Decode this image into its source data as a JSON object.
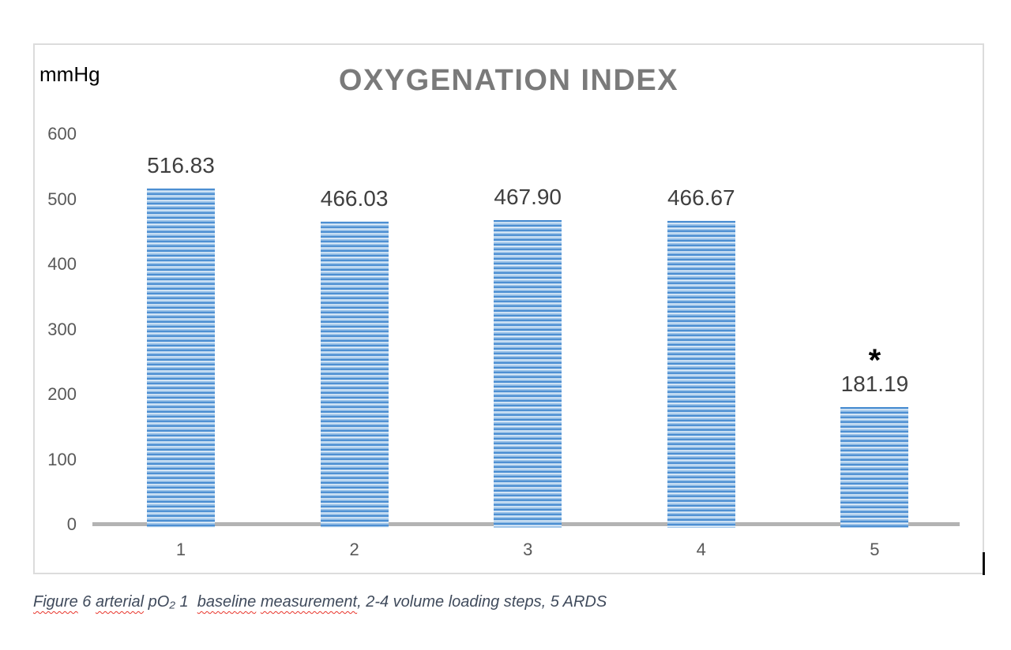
{
  "chart": {
    "title": "OXYGENATION INDEX",
    "unit_label": "mmHg"
  },
  "chart_data": {
    "type": "bar",
    "title": "OXYGENATION INDEX",
    "xlabel": "",
    "ylabel": "mmHg",
    "categories": [
      "1",
      "2",
      "3",
      "4",
      "5"
    ],
    "values": [
      516.83,
      466.03,
      467.9,
      466.67,
      181.19
    ],
    "data_labels": [
      "516.83",
      "466.03",
      "467.90",
      "466.67",
      "181.19"
    ],
    "yticks": [
      0,
      100,
      200,
      300,
      400,
      500,
      600
    ],
    "ylim": [
      0,
      600
    ],
    "grid": false,
    "legend": "none",
    "bar_color": "#5b9bd5",
    "bar_pattern": "horizontal-stripes",
    "annotations": [
      {
        "category": "5",
        "text": "*"
      }
    ]
  },
  "caption": {
    "segments": [
      {
        "text": "Figure",
        "misspelled": true
      },
      {
        "text": " 6 ",
        "misspelled": false
      },
      {
        "text": "arterial",
        "misspelled": true
      },
      {
        "text": " pO₂ 1  ",
        "misspelled": false
      },
      {
        "text": "baseline",
        "misspelled": true
      },
      {
        "text": " ",
        "misspelled": false
      },
      {
        "text": "measurement",
        "misspelled": true
      },
      {
        "text": ", 2-4 volume loading steps, 5 ARDS",
        "misspelled": false
      }
    ]
  },
  "colors": {
    "bar_fill": "#5b9bd5",
    "bar_stripe_light": "#9cc3e6",
    "bar_stripe_pale": "#ecf4fb",
    "title_gray": "#7a7a7a",
    "axis_line_gray": "#b3b3b3",
    "tick_gray": "#595959",
    "value_label_gray": "#3f3f3f",
    "caption_color": "#404b5c",
    "squiggle_red": "#e8342a",
    "frame_border_gray": "#dcdcdc"
  }
}
